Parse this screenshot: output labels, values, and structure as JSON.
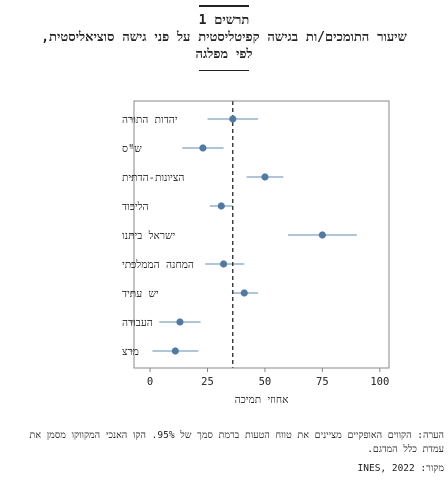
{
  "figure": {
    "number": "תרשים 1",
    "title_lines": [
      "שיעור התומכים/ות בגישה קפיטליסטית על פני גישה סוציאליסטית,",
      "לפי מפלגה"
    ],
    "note": "הערה: הקווים האופקיים מציינים את טווח הטעות ברמת סמך של 95%. הקו האנכי המקווקו מסמן את עמדת כלל המדגם.",
    "source": "מקור: INES, 2022"
  },
  "chart_data": {
    "type": "scatter",
    "xlabel": "אחוזי תמיכה",
    "ylabel": "",
    "xlim": [
      -7,
      104
    ],
    "xticks": [
      0,
      25,
      50,
      75,
      100
    ],
    "grid": false,
    "reference_line": 36,
    "categories": [
      "יהדות התורה",
      "ש\"ס",
      "הציונות-הדתית",
      "הליכוד",
      "ישראל ביתנו",
      "המחנה הממלכתי",
      "יש עתיד",
      "העבודה",
      "מרצ"
    ],
    "values": [
      36,
      23,
      50,
      31,
      75,
      32,
      41,
      13,
      11
    ],
    "ci_low": [
      25,
      14,
      42,
      26,
      60,
      24,
      36,
      4,
      1
    ],
    "ci_high": [
      47,
      32,
      58,
      36,
      90,
      41,
      47,
      22,
      21
    ],
    "colors": {
      "point": "#4f7aa6",
      "ci": "#7da4c8",
      "reference": "#111111",
      "axis": "#888888"
    }
  }
}
